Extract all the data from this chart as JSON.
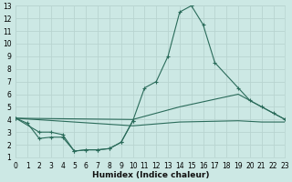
{
  "xlabel": "Humidex (Indice chaleur)",
  "bg_color": "#cce8e4",
  "grid_color": "#b8d4d0",
  "line_color": "#2a6b5a",
  "xlim": [
    0,
    23
  ],
  "ylim": [
    1,
    13
  ],
  "xticks": [
    0,
    1,
    2,
    3,
    4,
    5,
    6,
    7,
    8,
    9,
    10,
    11,
    12,
    13,
    14,
    15,
    16,
    17,
    18,
    19,
    20,
    21,
    22,
    23
  ],
  "yticks": [
    1,
    2,
    3,
    4,
    5,
    6,
    7,
    8,
    9,
    10,
    11,
    12,
    13
  ],
  "line1_x": [
    0,
    1,
    2,
    3,
    4,
    5,
    6,
    7,
    8,
    9,
    10,
    11,
    12,
    13,
    14,
    15,
    16,
    17,
    19,
    20,
    21,
    22,
    23
  ],
  "line1_y": [
    4.1,
    3.7,
    2.5,
    2.6,
    2.6,
    1.5,
    1.6,
    1.6,
    1.7,
    2.2,
    3.9,
    6.5,
    7.0,
    9.0,
    12.5,
    13.0,
    11.5,
    8.5,
    6.5,
    5.5,
    5.0,
    4.5,
    4.0
  ],
  "line2_x": [
    0,
    10,
    14,
    19,
    20,
    23
  ],
  "line2_y": [
    4.1,
    4.0,
    5.0,
    6.0,
    5.5,
    4.0
  ],
  "line3_x": [
    0,
    10,
    14,
    19,
    21,
    23
  ],
  "line3_y": [
    4.1,
    3.5,
    3.8,
    3.9,
    3.8,
    3.8
  ],
  "line4_x": [
    0,
    2,
    3,
    4,
    5,
    6,
    7,
    8,
    9,
    10
  ],
  "line4_y": [
    4.1,
    3.0,
    3.0,
    2.8,
    1.5,
    1.6,
    1.6,
    1.7,
    2.2,
    3.9
  ]
}
